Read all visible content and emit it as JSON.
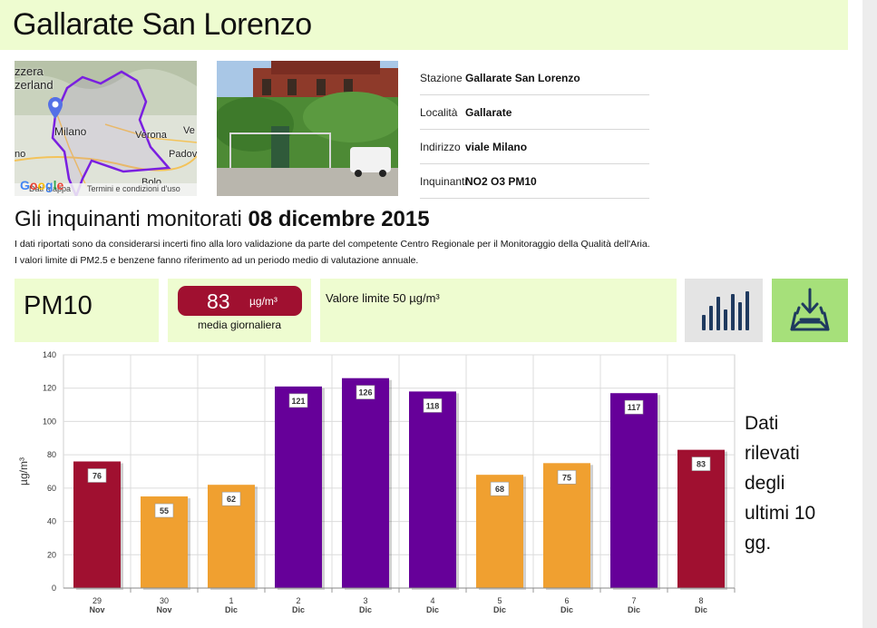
{
  "station_title": "Gallarate San Lorenzo",
  "map": {
    "labels": [
      "zzera",
      "zerland",
      "Milano",
      "Verona",
      "Ve",
      "no",
      "Padov",
      "Bolo"
    ],
    "footer_data": "Dati mappa",
    "footer_terms": "Termini e condizioni d'uso",
    "logo": "Google"
  },
  "info": [
    {
      "key": "Stazione",
      "value": "Gallarate San Lorenzo"
    },
    {
      "key": "Località",
      "value": "Gallarate"
    },
    {
      "key": "Indirizzo",
      "value": "viale Milano"
    },
    {
      "key": "Inquinanti",
      "value": "NO2 O3 PM10"
    }
  ],
  "section": {
    "title_prefix": "Gli inquinanti monitorati",
    "date": "08 dicembre 2015",
    "note1": "I dati riportati sono da considerarsi incerti fino alla loro validazione da parte del competente Centro Regionale per il Monitoraggio della Qualità dell'Aria.",
    "note2": "I valori limite di PM2.5 e benzene fanno riferimento ad un periodo medio di valutazione annuale."
  },
  "pollutant": {
    "name": "PM10",
    "value": "83",
    "unit": "µg/m³",
    "caption": "media giornaliera",
    "limit_text": "Valore limite 50 µg/m³"
  },
  "icons": {
    "chart": "bar-chart-icon",
    "download": "download-icon"
  },
  "colors": {
    "header_bg": "#eefcd0",
    "red": "#a01030",
    "orange": "#f0a030",
    "purple": "#660099",
    "green_button": "#a6e07a"
  },
  "side_text": "Dati rilevati degli ultimi 10 gg.",
  "chart_data": {
    "type": "bar",
    "categories": [
      [
        "29",
        "Nov"
      ],
      [
        "30",
        "Nov"
      ],
      [
        "1",
        "Dic"
      ],
      [
        "2",
        "Dic"
      ],
      [
        "3",
        "Dic"
      ],
      [
        "4",
        "Dic"
      ],
      [
        "5",
        "Dic"
      ],
      [
        "6",
        "Dic"
      ],
      [
        "7",
        "Dic"
      ],
      [
        "8",
        "Dic"
      ]
    ],
    "values": [
      76,
      55,
      62,
      121,
      126,
      118,
      68,
      75,
      117,
      83
    ],
    "bar_colors": [
      "#a01030",
      "#f0a030",
      "#f0a030",
      "#660099",
      "#660099",
      "#660099",
      "#f0a030",
      "#f0a030",
      "#660099",
      "#a01030"
    ],
    "ylabel": "µg/m³",
    "ylim": [
      0,
      140
    ],
    "yticks": [
      0,
      20,
      40,
      60,
      80,
      100,
      120,
      140
    ],
    "grid": true,
    "data_labels": true
  }
}
